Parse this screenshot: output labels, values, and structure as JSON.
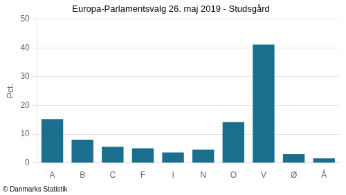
{
  "chart_data": {
    "type": "bar",
    "title": "Europa-Parlamentsvalg 26. maj 2019 - Studsgård",
    "ylabel": "Pct.",
    "annotations": [
      "© Danmarks Statistik"
    ],
    "categories": [
      "A",
      "B",
      "C",
      "F",
      "I",
      "N",
      "O",
      "V",
      "Ø",
      "Å"
    ],
    "values": [
      15.2,
      8.1,
      5.6,
      5.1,
      3.6,
      4.6,
      14.2,
      41.1,
      3.0,
      1.6
    ],
    "color": "#1a6e8e",
    "ylim": [
      0,
      50
    ],
    "yticks": [
      0,
      10,
      20,
      30,
      40,
      50
    ],
    "grid": true
  }
}
